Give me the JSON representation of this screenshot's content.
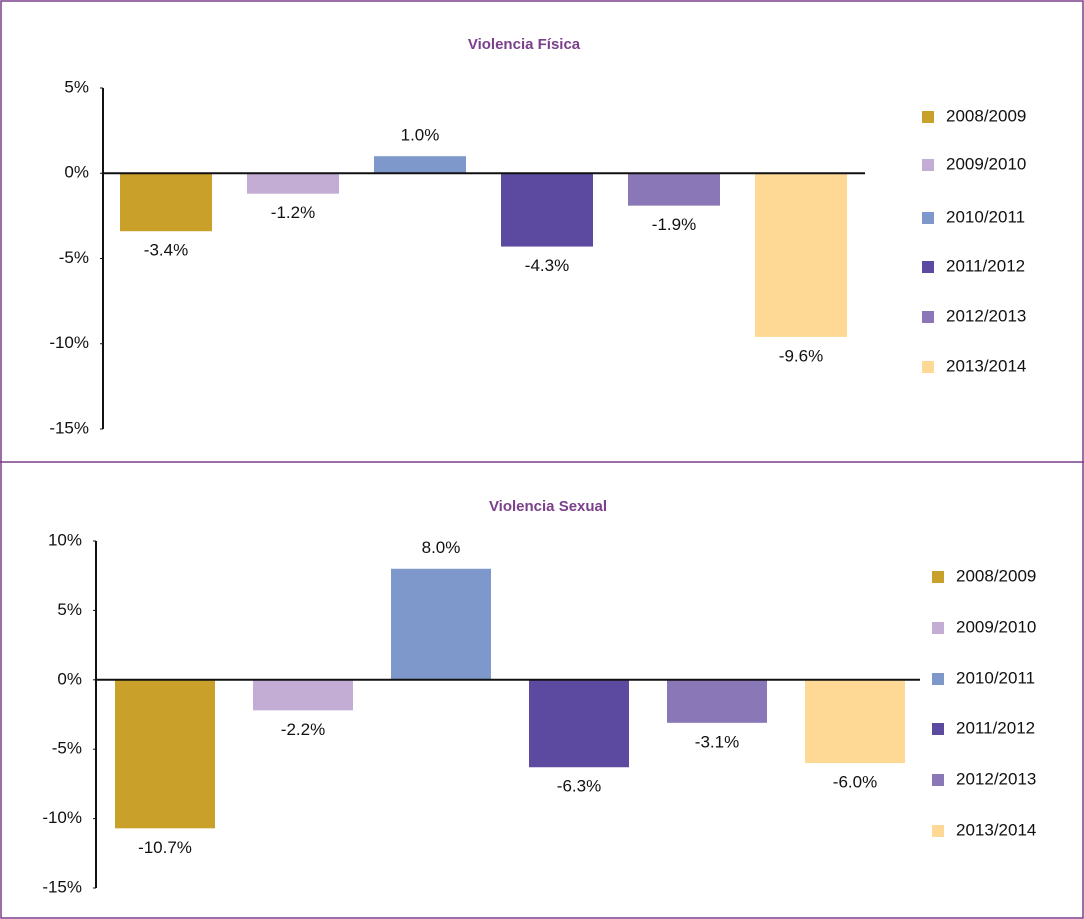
{
  "chart_data": [
    {
      "type": "bar",
      "title": "Violencia Física",
      "series": [
        {
          "name": "2008/2009",
          "color": "#c9a02a",
          "values": [
            -3.4
          ],
          "value_labels": [
            "-3.4%"
          ]
        },
        {
          "name": "2009/2010",
          "color": "#c3add4",
          "values": [
            -1.2
          ],
          "value_labels": [
            "-1.2%"
          ]
        },
        {
          "name": "2010/2011",
          "color": "#7f98cc",
          "values": [
            1.0
          ],
          "value_labels": [
            "1.0%"
          ]
        },
        {
          "name": "2011/2012",
          "color": "#5b4a9f",
          "values": [
            -4.3
          ],
          "value_labels": [
            "-4.3%"
          ]
        },
        {
          "name": "2012/2013",
          "color": "#8a77b7",
          "values": [
            -1.9
          ],
          "value_labels": [
            "-1.9%"
          ]
        },
        {
          "name": "2013/2014",
          "color": "#fdd995",
          "values": [
            -9.6
          ],
          "value_labels": [
            "-9.6%"
          ]
        }
      ],
      "ylim": [
        -15,
        5
      ],
      "yticks": [
        {
          "value": 5,
          "label": "5%"
        },
        {
          "value": 0,
          "label": "0%"
        },
        {
          "value": -5,
          "label": "-5%"
        },
        {
          "value": -10,
          "label": "-10%"
        },
        {
          "value": -15,
          "label": "-15%"
        }
      ],
      "legend": "right"
    },
    {
      "type": "bar",
      "title": "Violencia Sexual",
      "series": [
        {
          "name": "2008/2009",
          "color": "#c9a02a",
          "values": [
            -10.7
          ],
          "value_labels": [
            "-10.7%"
          ]
        },
        {
          "name": "2009/2010",
          "color": "#c3add4",
          "values": [
            -2.2
          ],
          "value_labels": [
            "-2.2%"
          ]
        },
        {
          "name": "2010/2011",
          "color": "#7f98cc",
          "values": [
            8.0
          ],
          "value_labels": [
            "8.0%"
          ]
        },
        {
          "name": "2011/2012",
          "color": "#5b4a9f",
          "values": [
            -6.3
          ],
          "value_labels": [
            "-6.3%"
          ]
        },
        {
          "name": "2012/2013",
          "color": "#8a77b7",
          "values": [
            -3.1
          ],
          "value_labels": [
            "-3.1%"
          ]
        },
        {
          "name": "2013/2014",
          "color": "#fdd995",
          "values": [
            -6.0
          ],
          "value_labels": [
            "-6.0%"
          ]
        }
      ],
      "ylim": [
        -15,
        10
      ],
      "yticks": [
        {
          "value": 10,
          "label": "10%"
        },
        {
          "value": 5,
          "label": "5%"
        },
        {
          "value": 0,
          "label": "0%"
        },
        {
          "value": -5,
          "label": "-5%"
        },
        {
          "value": -10,
          "label": "-10%"
        },
        {
          "value": -15,
          "label": "-15%"
        }
      ],
      "legend": "right"
    }
  ]
}
